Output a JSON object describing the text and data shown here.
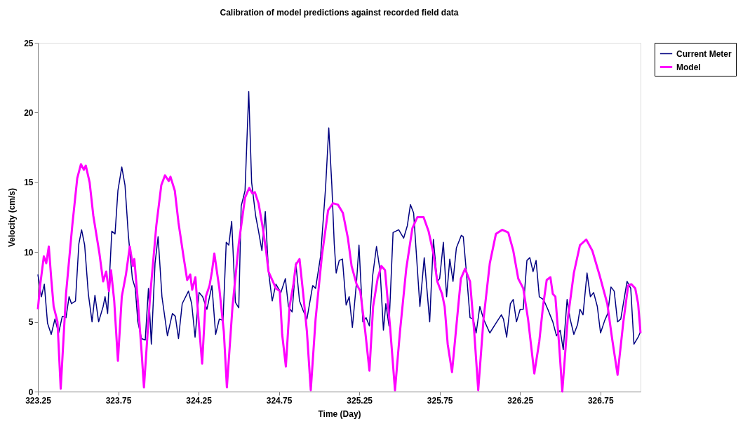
{
  "chart_data": {
    "type": "line",
    "title": "Calibration of model predictions against recorded field data",
    "xlabel": "Time (Day)",
    "ylabel": "Velocity (cm/s)",
    "xlim": [
      323.25,
      327.0
    ],
    "xticks": [
      323.25,
      323.75,
      324.25,
      324.75,
      325.25,
      325.75,
      326.25,
      326.75
    ],
    "ylim": [
      0,
      25
    ],
    "yticks": [
      0,
      5,
      10,
      15,
      20,
      25
    ],
    "grid": false,
    "legend": "right",
    "marker": "none",
    "line_style": "solid",
    "series": [
      {
        "name": "Current Meter",
        "color": "#000080",
        "x": [
          323.25,
          323.272,
          323.29,
          323.31,
          323.333,
          323.356,
          323.379,
          323.402,
          323.425,
          323.444,
          323.459,
          323.484,
          323.505,
          323.522,
          323.541,
          323.564,
          323.587,
          323.605,
          323.628,
          323.656,
          323.668,
          323.684,
          323.71,
          323.73,
          323.748,
          323.772,
          323.792,
          323.813,
          323.838,
          323.856,
          323.872,
          323.895,
          323.918,
          323.938,
          323.956,
          323.979,
          323.998,
          324.022,
          324.056,
          324.087,
          324.105,
          324.125,
          324.148,
          324.187,
          324.207,
          324.228,
          324.253,
          324.275,
          324.302,
          324.333,
          324.356,
          324.379,
          324.402,
          324.422,
          324.438,
          324.456,
          324.479,
          324.5,
          324.515,
          324.539,
          324.562,
          324.58,
          324.605,
          324.623,
          324.644,
          324.665,
          324.685,
          324.708,
          324.731,
          324.762,
          324.79,
          324.809,
          324.832,
          324.855,
          324.878,
          324.901,
          324.924,
          324.96,
          324.978,
          325.009,
          325.04,
          325.06,
          325.079,
          325.094,
          325.106,
          325.125,
          325.145,
          325.168,
          325.187,
          325.207,
          325.233,
          325.248,
          325.272,
          325.292,
          325.313,
          325.333,
          325.357,
          325.38,
          325.4,
          325.415,
          325.435,
          325.46,
          325.495,
          325.526,
          325.549,
          325.568,
          325.588,
          325.627,
          325.654,
          325.688,
          325.711,
          325.735,
          325.75,
          325.773,
          325.793,
          325.813,
          325.833,
          325.854,
          325.885,
          325.897,
          325.916,
          325.939,
          325.959,
          325.977,
          326.0,
          326.023,
          326.062,
          326.1,
          326.134,
          326.147,
          326.167,
          326.19,
          326.208,
          326.228,
          326.251,
          326.27,
          326.293,
          326.311,
          326.331,
          326.35,
          326.37,
          326.396,
          326.423,
          326.454,
          326.477,
          326.5,
          326.519,
          326.543,
          326.562,
          326.585,
          326.608,
          326.623,
          326.642,
          326.667,
          326.688,
          326.708,
          326.731,
          326.751,
          326.777,
          326.796,
          326.816,
          326.836,
          326.857,
          326.877,
          326.916,
          326.939,
          326.959,
          326.985,
          327.0
        ],
        "values": [
          8.4,
          6.8,
          7.7,
          4.9,
          4.1,
          5.2,
          4.2,
          5.4,
          5.3,
          6.8,
          6.3,
          6.5,
          10.6,
          11.6,
          10.5,
          7.0,
          5.0,
          6.9,
          5.0,
          6.1,
          6.8,
          5.6,
          11.5,
          11.3,
          14.4,
          16.1,
          14.8,
          11.2,
          8.1,
          7.4,
          5.0,
          3.8,
          3.7,
          7.4,
          3.4,
          9.2,
          11.1,
          6.8,
          4.0,
          5.6,
          5.4,
          3.8,
          6.3,
          7.2,
          6.3,
          3.9,
          7.1,
          6.8,
          5.9,
          7.6,
          4.1,
          5.2,
          5.1,
          10.7,
          10.5,
          12.2,
          6.4,
          6.0,
          13.3,
          14.4,
          21.5,
          15.0,
          12.6,
          11.5,
          10.1,
          12.9,
          8.6,
          6.5,
          7.7,
          7.1,
          8.1,
          6.1,
          5.7,
          9.2,
          6.5,
          5.8,
          5.2,
          7.6,
          7.4,
          9.7,
          14.6,
          18.9,
          14.8,
          10.6,
          8.5,
          9.4,
          9.5,
          6.2,
          6.8,
          4.6,
          7.9,
          10.5,
          5.0,
          5.3,
          4.7,
          8.3,
          10.4,
          8.6,
          4.4,
          6.3,
          4.7,
          11.4,
          11.6,
          11.0,
          11.9,
          13.4,
          12.8,
          6.1,
          9.6,
          5.0,
          10.9,
          7.9,
          8.1,
          10.7,
          6.8,
          9.5,
          7.9,
          10.3,
          11.2,
          11.1,
          8.6,
          5.3,
          5.2,
          4.2,
          6.1,
          5.2,
          4.2,
          4.9,
          5.5,
          5.2,
          3.9,
          6.3,
          6.6,
          5.0,
          5.9,
          5.9,
          9.4,
          9.6,
          8.6,
          9.4,
          6.8,
          6.6,
          5.9,
          5.0,
          4.0,
          4.4,
          3.0,
          6.6,
          5.2,
          4.1,
          4.8,
          5.9,
          5.5,
          8.5,
          6.8,
          7.1,
          6.1,
          4.2,
          5.1,
          5.6,
          7.5,
          7.2,
          5.0,
          5.2,
          7.9,
          7.4,
          3.4,
          3.9,
          4.3
        ]
      },
      {
        "name": "Model",
        "color": "#ff00ff",
        "x": [
          323.25,
          323.264,
          323.287,
          323.302,
          323.318,
          323.333,
          323.348,
          323.372,
          323.392,
          323.425,
          323.464,
          323.495,
          323.518,
          323.536,
          323.548,
          323.572,
          323.595,
          323.633,
          323.656,
          323.675,
          323.692,
          323.705,
          323.725,
          323.748,
          323.772,
          323.798,
          323.822,
          323.841,
          323.85,
          323.872,
          323.895,
          323.91,
          323.948,
          323.987,
          324.018,
          324.041,
          324.064,
          324.075,
          324.102,
          324.125,
          324.156,
          324.179,
          324.198,
          324.21,
          324.23,
          324.248,
          324.272,
          324.295,
          324.318,
          324.333,
          324.348,
          324.379,
          324.407,
          324.426,
          324.461,
          324.5,
          324.539,
          324.565,
          324.585,
          324.6,
          324.623,
          324.647,
          324.67,
          324.685,
          324.708,
          324.731,
          324.755,
          324.77,
          324.793,
          324.816,
          324.84,
          324.855,
          324.878,
          324.901,
          324.924,
          324.948,
          324.978,
          325.017,
          325.056,
          325.086,
          325.117,
          325.148,
          325.179,
          325.202,
          325.233,
          325.256,
          325.287,
          325.313,
          325.336,
          325.364,
          325.387,
          325.41,
          325.441,
          325.472,
          325.503,
          325.542,
          325.58,
          325.611,
          325.65,
          325.681,
          325.711,
          325.735,
          325.765,
          325.781,
          325.8,
          325.827,
          325.854,
          325.882,
          325.908,
          325.939,
          325.965,
          325.99,
          326.023,
          326.062,
          326.1,
          326.139,
          326.177,
          326.208,
          326.239,
          326.27,
          326.3,
          326.339,
          326.37,
          326.393,
          326.416,
          326.439,
          326.454,
          326.47,
          326.493,
          326.513,
          326.547,
          326.585,
          326.623,
          326.662,
          326.7,
          326.746,
          326.793,
          326.823,
          326.857,
          326.893,
          326.923,
          326.943,
          326.967,
          326.985,
          327.0
        ],
        "values": [
          5.9,
          7.6,
          9.7,
          9.2,
          10.4,
          8.1,
          6.1,
          5.0,
          0.2,
          7.0,
          11.9,
          15.3,
          16.3,
          15.9,
          16.2,
          15.0,
          12.6,
          9.9,
          7.9,
          8.6,
          7.2,
          8.7,
          6.5,
          2.2,
          6.8,
          8.4,
          10.4,
          9.0,
          9.5,
          6.5,
          2.9,
          0.3,
          6.8,
          11.9,
          14.8,
          15.5,
          15.1,
          15.4,
          14.4,
          12.1,
          9.7,
          8.0,
          8.4,
          7.3,
          8.2,
          5.4,
          2.0,
          6.8,
          7.6,
          8.6,
          9.9,
          7.4,
          4.3,
          0.3,
          6.1,
          10.6,
          13.9,
          14.6,
          14.2,
          14.3,
          13.5,
          11.9,
          10.1,
          8.6,
          8.0,
          7.4,
          7.2,
          4.1,
          1.8,
          6.1,
          7.7,
          9.1,
          9.5,
          7.0,
          4.3,
          0.1,
          5.2,
          9.7,
          13.0,
          13.5,
          13.4,
          12.8,
          11.0,
          9.0,
          7.7,
          7.2,
          4.3,
          1.5,
          6.1,
          8.1,
          9.0,
          8.7,
          4.7,
          0.1,
          4.3,
          8.8,
          11.7,
          12.5,
          12.5,
          11.5,
          9.9,
          7.9,
          7.0,
          6.1,
          3.4,
          1.4,
          4.7,
          8.1,
          8.8,
          7.9,
          4.3,
          0.1,
          5.2,
          9.2,
          11.3,
          11.6,
          11.4,
          10.1,
          8.1,
          7.4,
          5.2,
          1.3,
          3.6,
          6.1,
          8.0,
          8.2,
          7.0,
          6.8,
          3.4,
          0.0,
          5.2,
          8.5,
          10.5,
          10.9,
          10.1,
          8.3,
          6.3,
          3.8,
          1.2,
          5.0,
          7.6,
          7.7,
          7.4,
          6.3,
          4.2
        ]
      }
    ]
  }
}
